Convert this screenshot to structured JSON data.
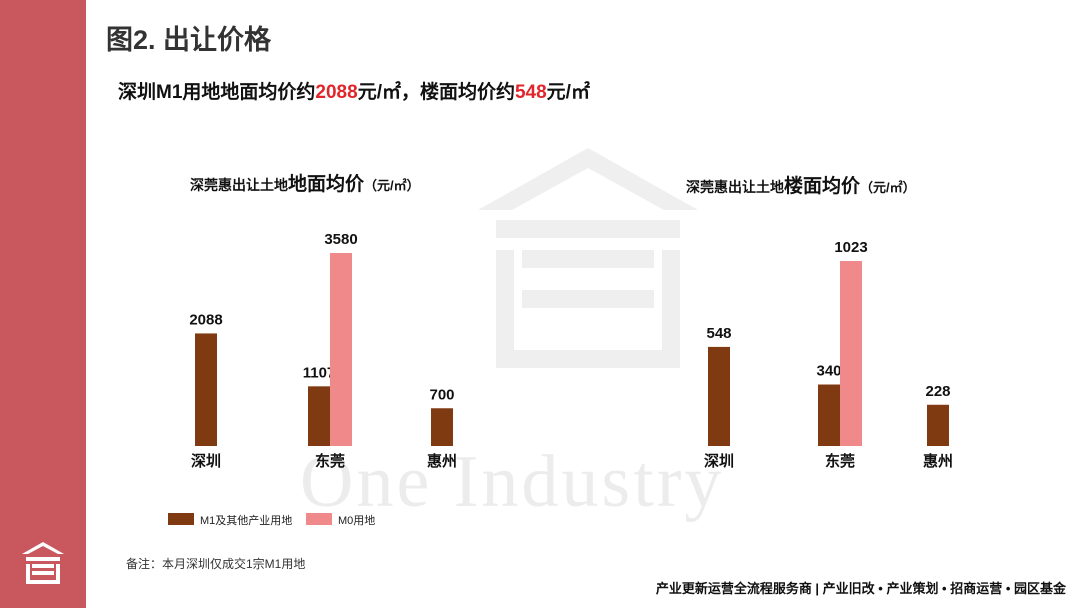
{
  "page": {
    "title": "图2. 出让价格",
    "subtitle_parts": [
      "深圳M1用地地面均价约",
      "2088",
      "元/㎡，楼面均价约",
      "548",
      "元/㎡"
    ],
    "note": "备注：本月深圳仅成交1宗M1用地",
    "footer": "产业更新运营全流程服务商  |  产业旧改 • 产业策划 • 招商运营 • 园区基金",
    "watermark": "One Industry"
  },
  "colors": {
    "sidebar": "#c9585e",
    "highlight": "#e0262b",
    "m1_series": "#7f3a12",
    "m0_series": "#f08a8a"
  },
  "legend": [
    {
      "name": "M1及其他产业用地",
      "color": "#7f3a12"
    },
    {
      "name": "M0用地",
      "color": "#f08a8a"
    }
  ],
  "chart_data": [
    {
      "type": "bar",
      "title_small": "深莞惠出让土地",
      "title_big": "地面均价",
      "unit": "（元/㎡）",
      "categories": [
        "深圳",
        "东莞",
        "惠州"
      ],
      "series": [
        {
          "name": "M1及其他产业用地",
          "values": [
            2088,
            1107,
            700
          ]
        },
        {
          "name": "M0用地",
          "values": [
            null,
            3580,
            null
          ]
        }
      ]
    },
    {
      "type": "bar",
      "title_small": "深莞惠出让土地",
      "title_big": "楼面均价",
      "unit": "（元/㎡）",
      "categories": [
        "深圳",
        "东莞",
        "惠州"
      ],
      "series": [
        {
          "name": "M1及其他产业用地",
          "values": [
            548,
            340,
            228
          ]
        },
        {
          "name": "M0用地",
          "values": [
            null,
            1023,
            null
          ]
        }
      ]
    }
  ]
}
